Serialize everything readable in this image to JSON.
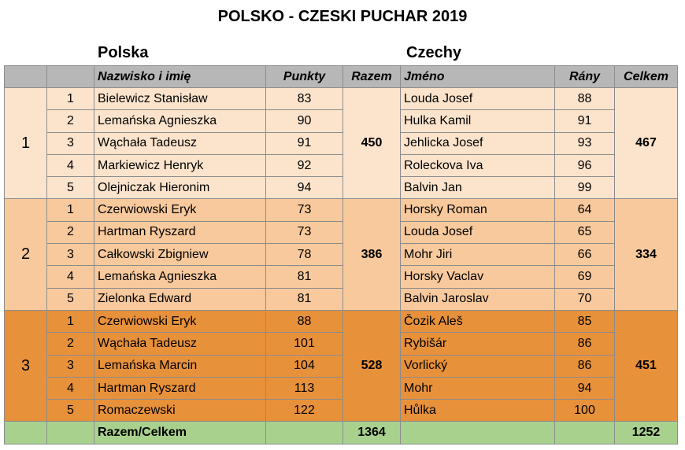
{
  "title": "POLSKO - CZESKI PUCHAR 2019",
  "teams": {
    "left": "Polska",
    "right": "Czechy"
  },
  "headers": {
    "pl_name": "Nazwisko i imię",
    "pl_points": "Punkty",
    "pl_sum": "Razem",
    "cz_name": "Jméno",
    "cz_points": "Rány",
    "cz_sum": "Celkem"
  },
  "groups": [
    {
      "label": "1",
      "pl_sum": "450",
      "cz_sum": "467",
      "rows": [
        {
          "no": "1",
          "pl_name": "Bielewicz Stanisław",
          "pl_points": "83",
          "cz_name": "Louda Josef",
          "cz_points": "88"
        },
        {
          "no": "2",
          "pl_name": "Lemańska Agnieszka",
          "pl_points": "90",
          "cz_name": "Hulka Kamil",
          "cz_points": "91"
        },
        {
          "no": "3",
          "pl_name": "Wąchała Tadeusz",
          "pl_points": "91",
          "cz_name": "Jehlicka Josef",
          "cz_points": "93"
        },
        {
          "no": "4",
          "pl_name": "Markiewicz Henryk",
          "pl_points": "92",
          "cz_name": "Roleckova Iva",
          "cz_points": "96"
        },
        {
          "no": "5",
          "pl_name": "Olejniczak Hieronim",
          "pl_points": "94",
          "cz_name": "Balvin Jan",
          "cz_points": "99"
        }
      ]
    },
    {
      "label": "2",
      "pl_sum": "386",
      "cz_sum": "334",
      "rows": [
        {
          "no": "1",
          "pl_name": "Czerwiowski Eryk",
          "pl_points": "73",
          "cz_name": "Horsky Roman",
          "cz_points": "64"
        },
        {
          "no": "2",
          "pl_name": "Hartman Ryszard",
          "pl_points": "73",
          "cz_name": "Louda Josef",
          "cz_points": "65"
        },
        {
          "no": "3",
          "pl_name": "Całkowski Zbigniew",
          "pl_points": "78",
          "cz_name": "Mohr Jiri",
          "cz_points": "66"
        },
        {
          "no": "4",
          "pl_name": "Lemańska Agnieszka",
          "pl_points": "81",
          "cz_name": "Horsky Vaclav",
          "cz_points": "69"
        },
        {
          "no": "5",
          "pl_name": "Zielonka Edward",
          "pl_points": "81",
          "cz_name": "Balvin Jaroslav",
          "cz_points": "70"
        }
      ]
    },
    {
      "label": "3",
      "pl_sum": "528",
      "cz_sum": "451",
      "rows": [
        {
          "no": "1",
          "pl_name": "Czerwiowski Eryk",
          "pl_points": "88",
          "cz_name": "Čozik Aleš",
          "cz_points": "85"
        },
        {
          "no": "2",
          "pl_name": "Wąchała Tadeusz",
          "pl_points": "101",
          "cz_name": "Rybišár",
          "cz_points": "86"
        },
        {
          "no": "3",
          "pl_name": "Lemańska Marcin",
          "pl_points": "104",
          "cz_name": "Vorlický",
          "cz_points": "86"
        },
        {
          "no": "4",
          "pl_name": "Hartman Ryszard",
          "pl_points": "113",
          "cz_name": "Mohr",
          "cz_points": "94"
        },
        {
          "no": "5",
          "pl_name": "Romaczewski",
          "pl_points": "122",
          "cz_name": "Hůlka",
          "cz_points": "100"
        }
      ]
    }
  ],
  "totals": {
    "label": "Razem/Celkem",
    "pl_total": "1364",
    "cz_total": "1252"
  },
  "colors": {
    "header": "#b7b7b7",
    "group1": "#fce4cc",
    "group2": "#f8c99c",
    "group3": "#e8913b",
    "total": "#a9d18e"
  }
}
